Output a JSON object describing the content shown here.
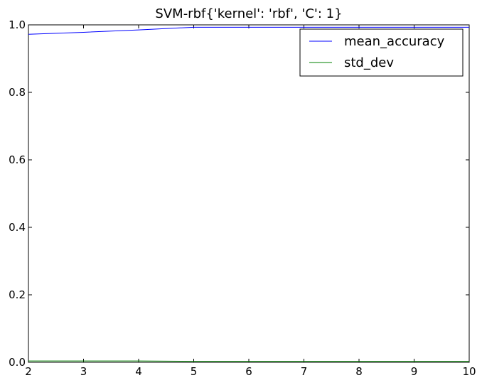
{
  "chart_data": {
    "type": "line",
    "title": "SVM-rbf{'kernel': 'rbf', 'C': 1}",
    "xlabel": "",
    "ylabel": "",
    "xlim": [
      2,
      10
    ],
    "ylim": [
      0.0,
      1.0
    ],
    "xticks": [
      2,
      3,
      4,
      5,
      6,
      7,
      8,
      9,
      10
    ],
    "xtick_labels": [
      "2",
      "3",
      "4",
      "5",
      "6",
      "7",
      "8",
      "9",
      "10"
    ],
    "yticks": [
      0.0,
      0.2,
      0.4,
      0.6,
      0.8,
      1.0
    ],
    "ytick_labels": [
      "0.0",
      "0.2",
      "0.4",
      "0.6",
      "0.8",
      "1.0"
    ],
    "grid": false,
    "legend_position": "top-right",
    "x": [
      2,
      3,
      4,
      5,
      6,
      7,
      8,
      9,
      10
    ],
    "series": [
      {
        "name": "mean_accuracy",
        "color": "#0000ff",
        "values": [
          0.972,
          0.978,
          0.985,
          0.993,
          0.993,
          0.993,
          0.993,
          0.993,
          0.993
        ]
      },
      {
        "name": "std_dev",
        "color": "#008000",
        "values": [
          0.004,
          0.004,
          0.004,
          0.003,
          0.003,
          0.003,
          0.003,
          0.003,
          0.003
        ]
      }
    ]
  }
}
